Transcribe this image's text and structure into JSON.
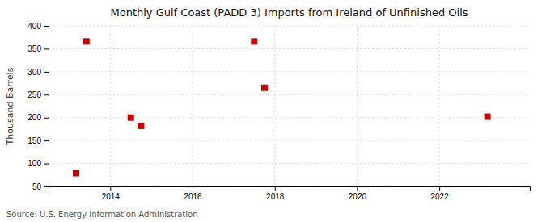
{
  "chart_data": {
    "type": "scatter",
    "title": "Monthly Gulf Coast (PADD 3) Imports from Ireland of Unfinished Oils",
    "ylabel": "Thousand Barrels",
    "annotation": "Source: U.S. Energy Information Administration",
    "x": [
      2013.17,
      2013.42,
      2014.5,
      2014.75,
      2017.5,
      2017.75,
      2023.17
    ],
    "values": [
      79,
      366,
      200,
      182,
      366,
      265,
      202
    ],
    "color": "#cc0000",
    "marker": "square",
    "xlim": [
      2012.5,
      2024.2
    ],
    "ylim": [
      50,
      400
    ],
    "xticks": [
      2014,
      2016,
      2018,
      2020,
      2022
    ],
    "yticks": [
      50,
      100,
      150,
      200,
      250,
      300,
      350,
      400
    ],
    "grid": true
  }
}
